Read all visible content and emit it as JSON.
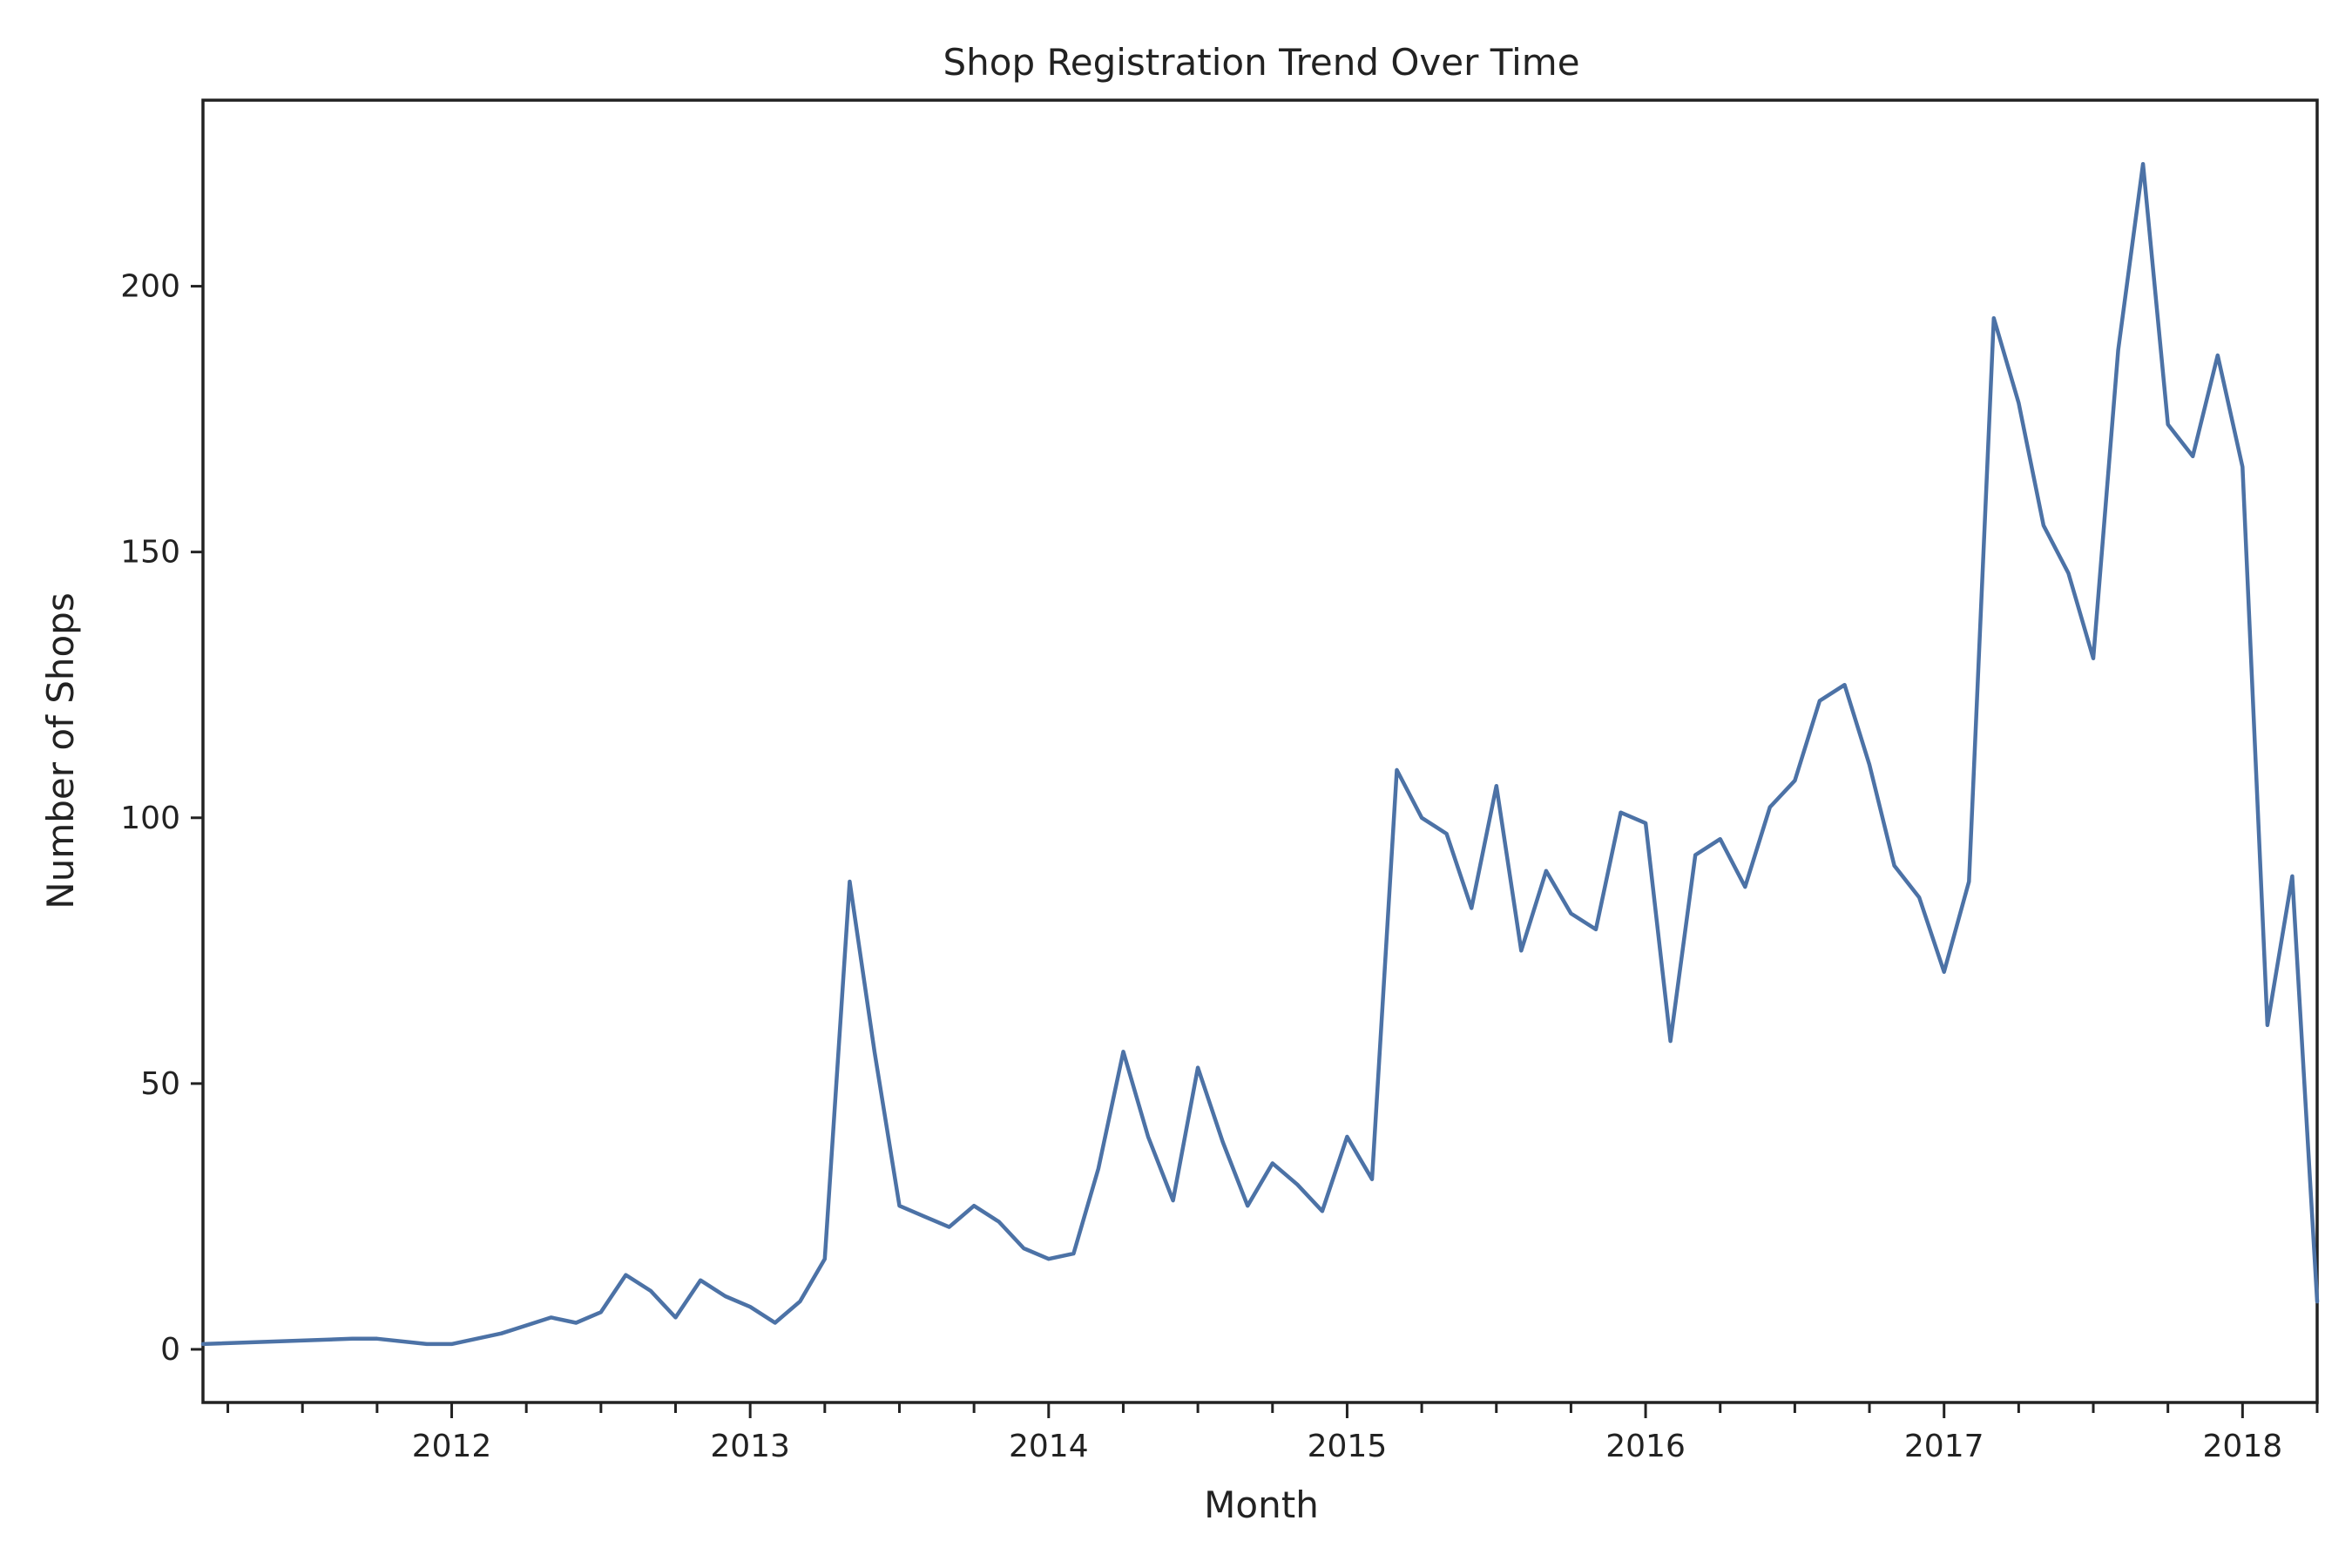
{
  "chart_data": {
    "type": "line",
    "title": "Shop Registration Trend Over Time",
    "xlabel": "Month",
    "ylabel": "Number of Shops",
    "x_tick_labels": [
      "2012",
      "2013",
      "2014",
      "2015",
      "2016",
      "2017",
      "2018"
    ],
    "y_ticks": [
      0,
      50,
      100,
      150,
      200
    ],
    "xlim": [
      "2011-03",
      "2018-04"
    ],
    "ylim": [
      -10,
      235
    ],
    "grid": false,
    "legend": "none",
    "line_color": "#4c72a6",
    "series": [
      {
        "points": [
          [
            "2011-03",
            1
          ],
          [
            "2011-09",
            2
          ],
          [
            "2011-10",
            2
          ],
          [
            "2011-12",
            1
          ],
          [
            "2012-01",
            1
          ],
          [
            "2012-03",
            3
          ],
          [
            "2012-05",
            6
          ],
          [
            "2012-06",
            5
          ],
          [
            "2012-07",
            7
          ],
          [
            "2012-08",
            14
          ],
          [
            "2012-09",
            11
          ],
          [
            "2012-10",
            6
          ],
          [
            "2012-11",
            13
          ],
          [
            "2012-12",
            10
          ],
          [
            "2013-01",
            8
          ],
          [
            "2013-02",
            5
          ],
          [
            "2013-03",
            9
          ],
          [
            "2013-04",
            17
          ],
          [
            "2013-05",
            88
          ],
          [
            "2013-06",
            56
          ],
          [
            "2013-07",
            27
          ],
          [
            "2013-08",
            25
          ],
          [
            "2013-09",
            23
          ],
          [
            "2013-10",
            27
          ],
          [
            "2013-11",
            24
          ],
          [
            "2013-12",
            19
          ],
          [
            "2014-01",
            17
          ],
          [
            "2014-02",
            18
          ],
          [
            "2014-03",
            34
          ],
          [
            "2014-04",
            56
          ],
          [
            "2014-05",
            40
          ],
          [
            "2014-06",
            28
          ],
          [
            "2014-07",
            53
          ],
          [
            "2014-08",
            39
          ],
          [
            "2014-09",
            27
          ],
          [
            "2014-10",
            35
          ],
          [
            "2014-11",
            31
          ],
          [
            "2014-12",
            26
          ],
          [
            "2015-01",
            40
          ],
          [
            "2015-02",
            32
          ],
          [
            "2015-03",
            109
          ],
          [
            "2015-04",
            100
          ],
          [
            "2015-05",
            97
          ],
          [
            "2015-06",
            83
          ],
          [
            "2015-07",
            106
          ],
          [
            "2015-08",
            75
          ],
          [
            "2015-09",
            90
          ],
          [
            "2015-10",
            82
          ],
          [
            "2015-11",
            79
          ],
          [
            "2015-12",
            101
          ],
          [
            "2016-01",
            99
          ],
          [
            "2016-02",
            58
          ],
          [
            "2016-03",
            93
          ],
          [
            "2016-04",
            96
          ],
          [
            "2016-05",
            87
          ],
          [
            "2016-06",
            102
          ],
          [
            "2016-07",
            107
          ],
          [
            "2016-08",
            122
          ],
          [
            "2016-09",
            125
          ],
          [
            "2016-10",
            110
          ],
          [
            "2016-11",
            91
          ],
          [
            "2016-12",
            85
          ],
          [
            "2017-01",
            71
          ],
          [
            "2017-02",
            88
          ],
          [
            "2017-03",
            194
          ],
          [
            "2017-04",
            178
          ],
          [
            "2017-05",
            155
          ],
          [
            "2017-06",
            146
          ],
          [
            "2017-07",
            130
          ],
          [
            "2017-08",
            188
          ],
          [
            "2017-09",
            223
          ],
          [
            "2017-10",
            174
          ],
          [
            "2017-11",
            168
          ],
          [
            "2017-12",
            187
          ],
          [
            "2018-01",
            166
          ],
          [
            "2018-02",
            61
          ],
          [
            "2018-03",
            89
          ],
          [
            "2018-04",
            9
          ]
        ]
      }
    ]
  }
}
